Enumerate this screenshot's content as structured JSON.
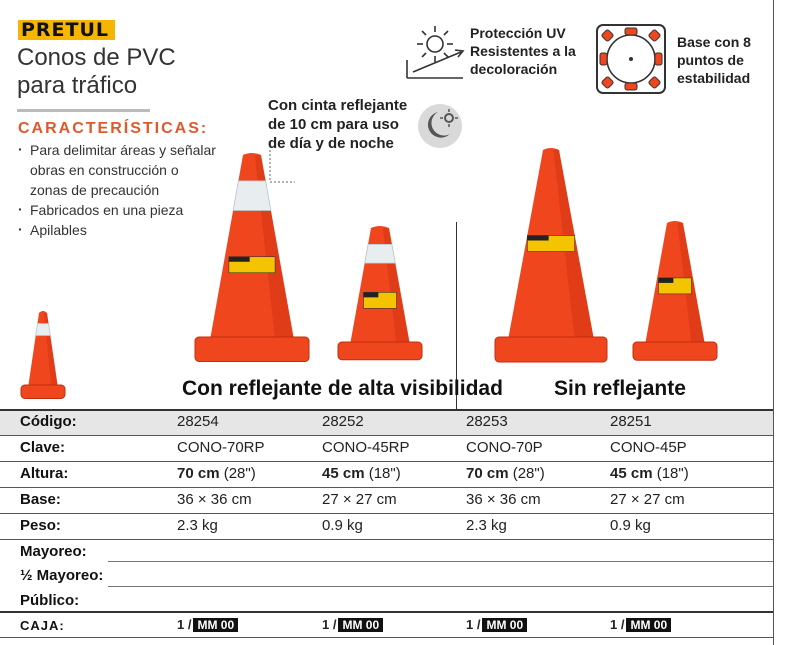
{
  "brand": "PRETUL",
  "title_lines": [
    "Conos de PVC",
    "para tráfico"
  ],
  "features": {
    "heading": "CARACTERÍSTICAS:",
    "items": [
      "Para delimitar áreas y señalar obras en construcción o zonas de precaución",
      "Fabricados en una pieza",
      "Apilables"
    ]
  },
  "callout_lines": [
    "Con cinta reflejante",
    "de 10 cm para uso",
    "de día y de noche"
  ],
  "uv_lines": [
    "Protección UV",
    "Resistentes a la",
    "decoloración"
  ],
  "base_lines": [
    "Base con 8",
    "puntos de",
    "estabilidad"
  ],
  "group_titles": {
    "reflective": "Con reflejante de alta visibilidad",
    "plain": "Sin reflejante"
  },
  "table": {
    "codigo_label": "Código:",
    "codes": [
      "28254",
      "28252",
      "28253",
      "28251"
    ],
    "clave_label": "Clave:",
    "claves": [
      "CONO-70RP",
      "CONO-45RP",
      "CONO-70P",
      "CONO-45P"
    ],
    "altura_label": "Altura:",
    "alturas_cm": [
      "70 cm",
      "45 cm",
      "70 cm",
      "45 cm"
    ],
    "alturas_in": [
      "(28\")",
      "(18\")",
      "(28\")",
      "(18\")"
    ],
    "base_label": "Base:",
    "bases": [
      "36 × 36 cm",
      "27 × 27 cm",
      "36 × 36 cm",
      "27 × 27 cm"
    ],
    "peso_label": "Peso:",
    "pesos": [
      "2.3 kg",
      "0.9 kg",
      "2.3 kg",
      "0.9 kg"
    ],
    "mayoreo_label": "Mayoreo:",
    "medio_mayoreo_label": "½ Mayoreo:",
    "publico_label": "Público:",
    "caja_label": "CAJA:",
    "caja_qty": "1 /",
    "caja_mm": "MM 00"
  },
  "colors": {
    "cone_orange": "#f0461e",
    "cone_dark": "#c32c0d",
    "brand_yellow": "#f5b500",
    "feature_orange": "#e0592a"
  }
}
